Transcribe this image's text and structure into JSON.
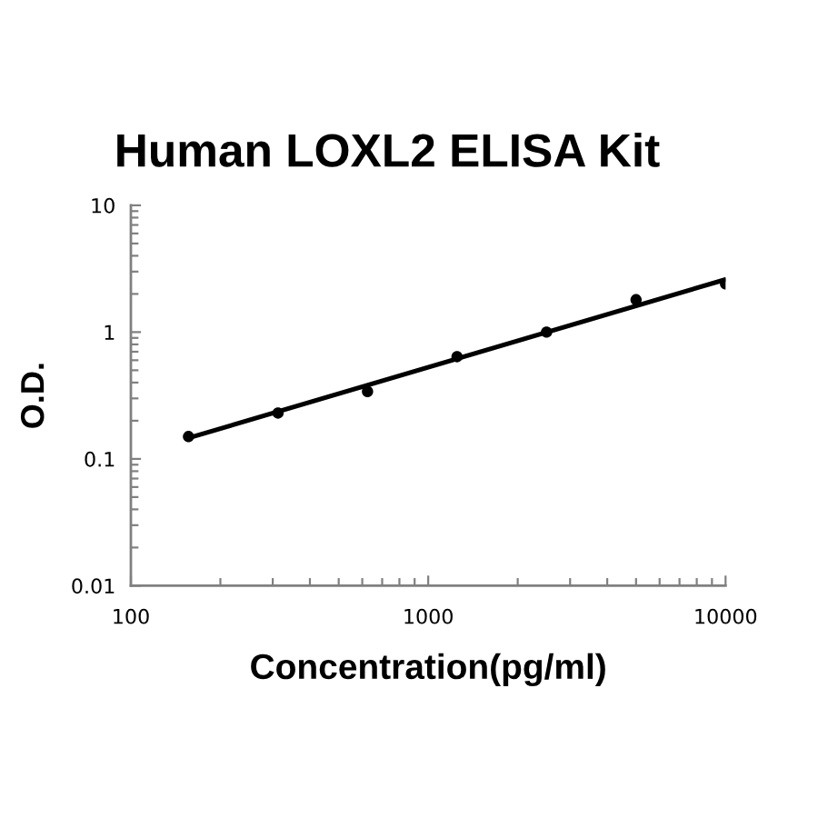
{
  "chart_data": {
    "type": "scatter",
    "title": "Human LOXL2 ELISA Kit",
    "xlabel": "Concentration(pg/ml)",
    "ylabel": "O.D.",
    "series": [
      {
        "color": "#000000",
        "marker": "circle",
        "x": [
          156.25,
          312.5,
          625,
          1250,
          2500,
          5000,
          10000
        ],
        "values": [
          0.15,
          0.23,
          0.34,
          0.64,
          1.0,
          1.8,
          2.4
        ]
      },
      {
        "type": "line",
        "color": "#000000",
        "line_style": "solid",
        "x": [
          156.25,
          10000
        ],
        "values": [
          0.146,
          2.6
        ]
      }
    ],
    "log": "xy",
    "xlim": [
      100,
      10000
    ],
    "ylim": [
      0.01,
      10
    ],
    "xticks": [
      100,
      1000,
      10000
    ],
    "yticks": [
      0.01,
      0.1,
      1,
      10
    ]
  }
}
